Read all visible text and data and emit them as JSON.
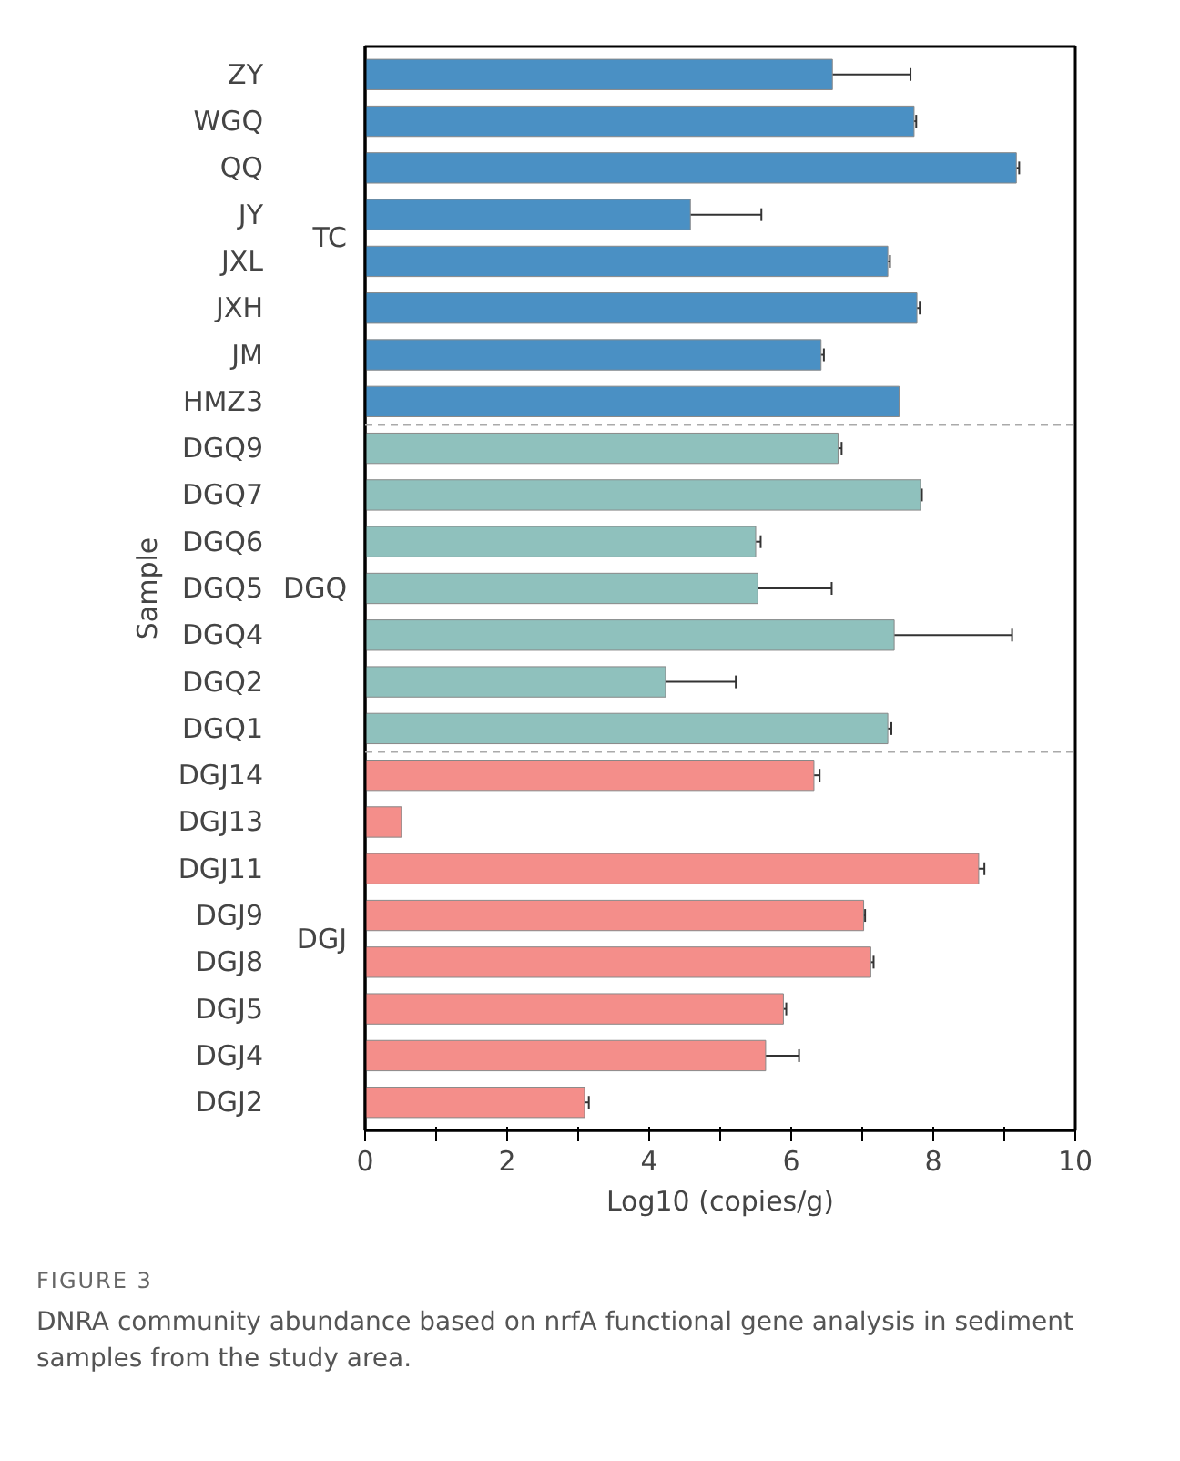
{
  "chart_data": {
    "type": "bar",
    "orientation": "horizontal",
    "xlabel": "Log10 (copies/g)",
    "ylabel": "Sample",
    "categories": [
      "ZY",
      "WGQ",
      "QQ",
      "JY",
      "JXL",
      "JXH",
      "JM",
      "HMZ3",
      "DGQ9",
      "DGQ7",
      "DGQ6",
      "DGQ5",
      "DGQ4",
      "DGQ2",
      "DGQ1",
      "DGJ14",
      "DGJ13",
      "DGJ11",
      "DGJ9",
      "DGJ8",
      "DGJ5",
      "DGJ4",
      "DGJ2"
    ],
    "series": [
      {
        "name": "TC",
        "color": "#4a90c4",
        "values": [
          6.58,
          7.73,
          9.17,
          4.58,
          7.36,
          7.77,
          6.42,
          7.52,
          null,
          null,
          null,
          null,
          null,
          null,
          null,
          null,
          null,
          null,
          null,
          null,
          null,
          null,
          null
        ],
        "errors": [
          1.1,
          0.03,
          0.04,
          1.0,
          0.03,
          0.04,
          0.04,
          null,
          null,
          null,
          null,
          null,
          null,
          null,
          null,
          null,
          null,
          null,
          null,
          null,
          null,
          null,
          null
        ]
      },
      {
        "name": "DGQ",
        "color": "#8fc1bd",
        "values": [
          null,
          null,
          null,
          null,
          null,
          null,
          null,
          null,
          6.66,
          7.82,
          5.5,
          5.53,
          7.45,
          4.23,
          7.36,
          null,
          null,
          null,
          null,
          null,
          null,
          null,
          null
        ],
        "errors": [
          null,
          null,
          null,
          null,
          null,
          null,
          null,
          null,
          0.05,
          0.02,
          0.07,
          1.04,
          1.66,
          0.99,
          0.05,
          null,
          null,
          null,
          null,
          null,
          null,
          null,
          null
        ]
      },
      {
        "name": "DGJ",
        "color": "#f48e8a",
        "values": [
          null,
          null,
          null,
          null,
          null,
          null,
          null,
          null,
          null,
          null,
          null,
          null,
          null,
          null,
          null,
          6.32,
          0.51,
          8.64,
          7.02,
          7.12,
          5.89,
          5.64,
          3.09
        ],
        "errors": [
          null,
          null,
          null,
          null,
          null,
          null,
          null,
          null,
          null,
          null,
          null,
          null,
          null,
          null,
          null,
          0.08,
          null,
          0.08,
          0.02,
          0.04,
          0.04,
          0.47,
          0.06
        ]
      }
    ],
    "xlim": [
      0,
      10
    ],
    "xticks": [
      0,
      {
        "value": 1,
        "label": null
      },
      2,
      {
        "value": 3,
        "label": null
      },
      4,
      {
        "value": 5,
        "label": null
      },
      6,
      {
        "value": 7,
        "label": null
      },
      8,
      {
        "value": 9,
        "label": null
      },
      10
    ],
    "grid": false,
    "annotations": [
      "FIGURE 3",
      "DNRA community abundance based on nrfA functional gene analysis in sediment samples from the study area."
    ]
  }
}
